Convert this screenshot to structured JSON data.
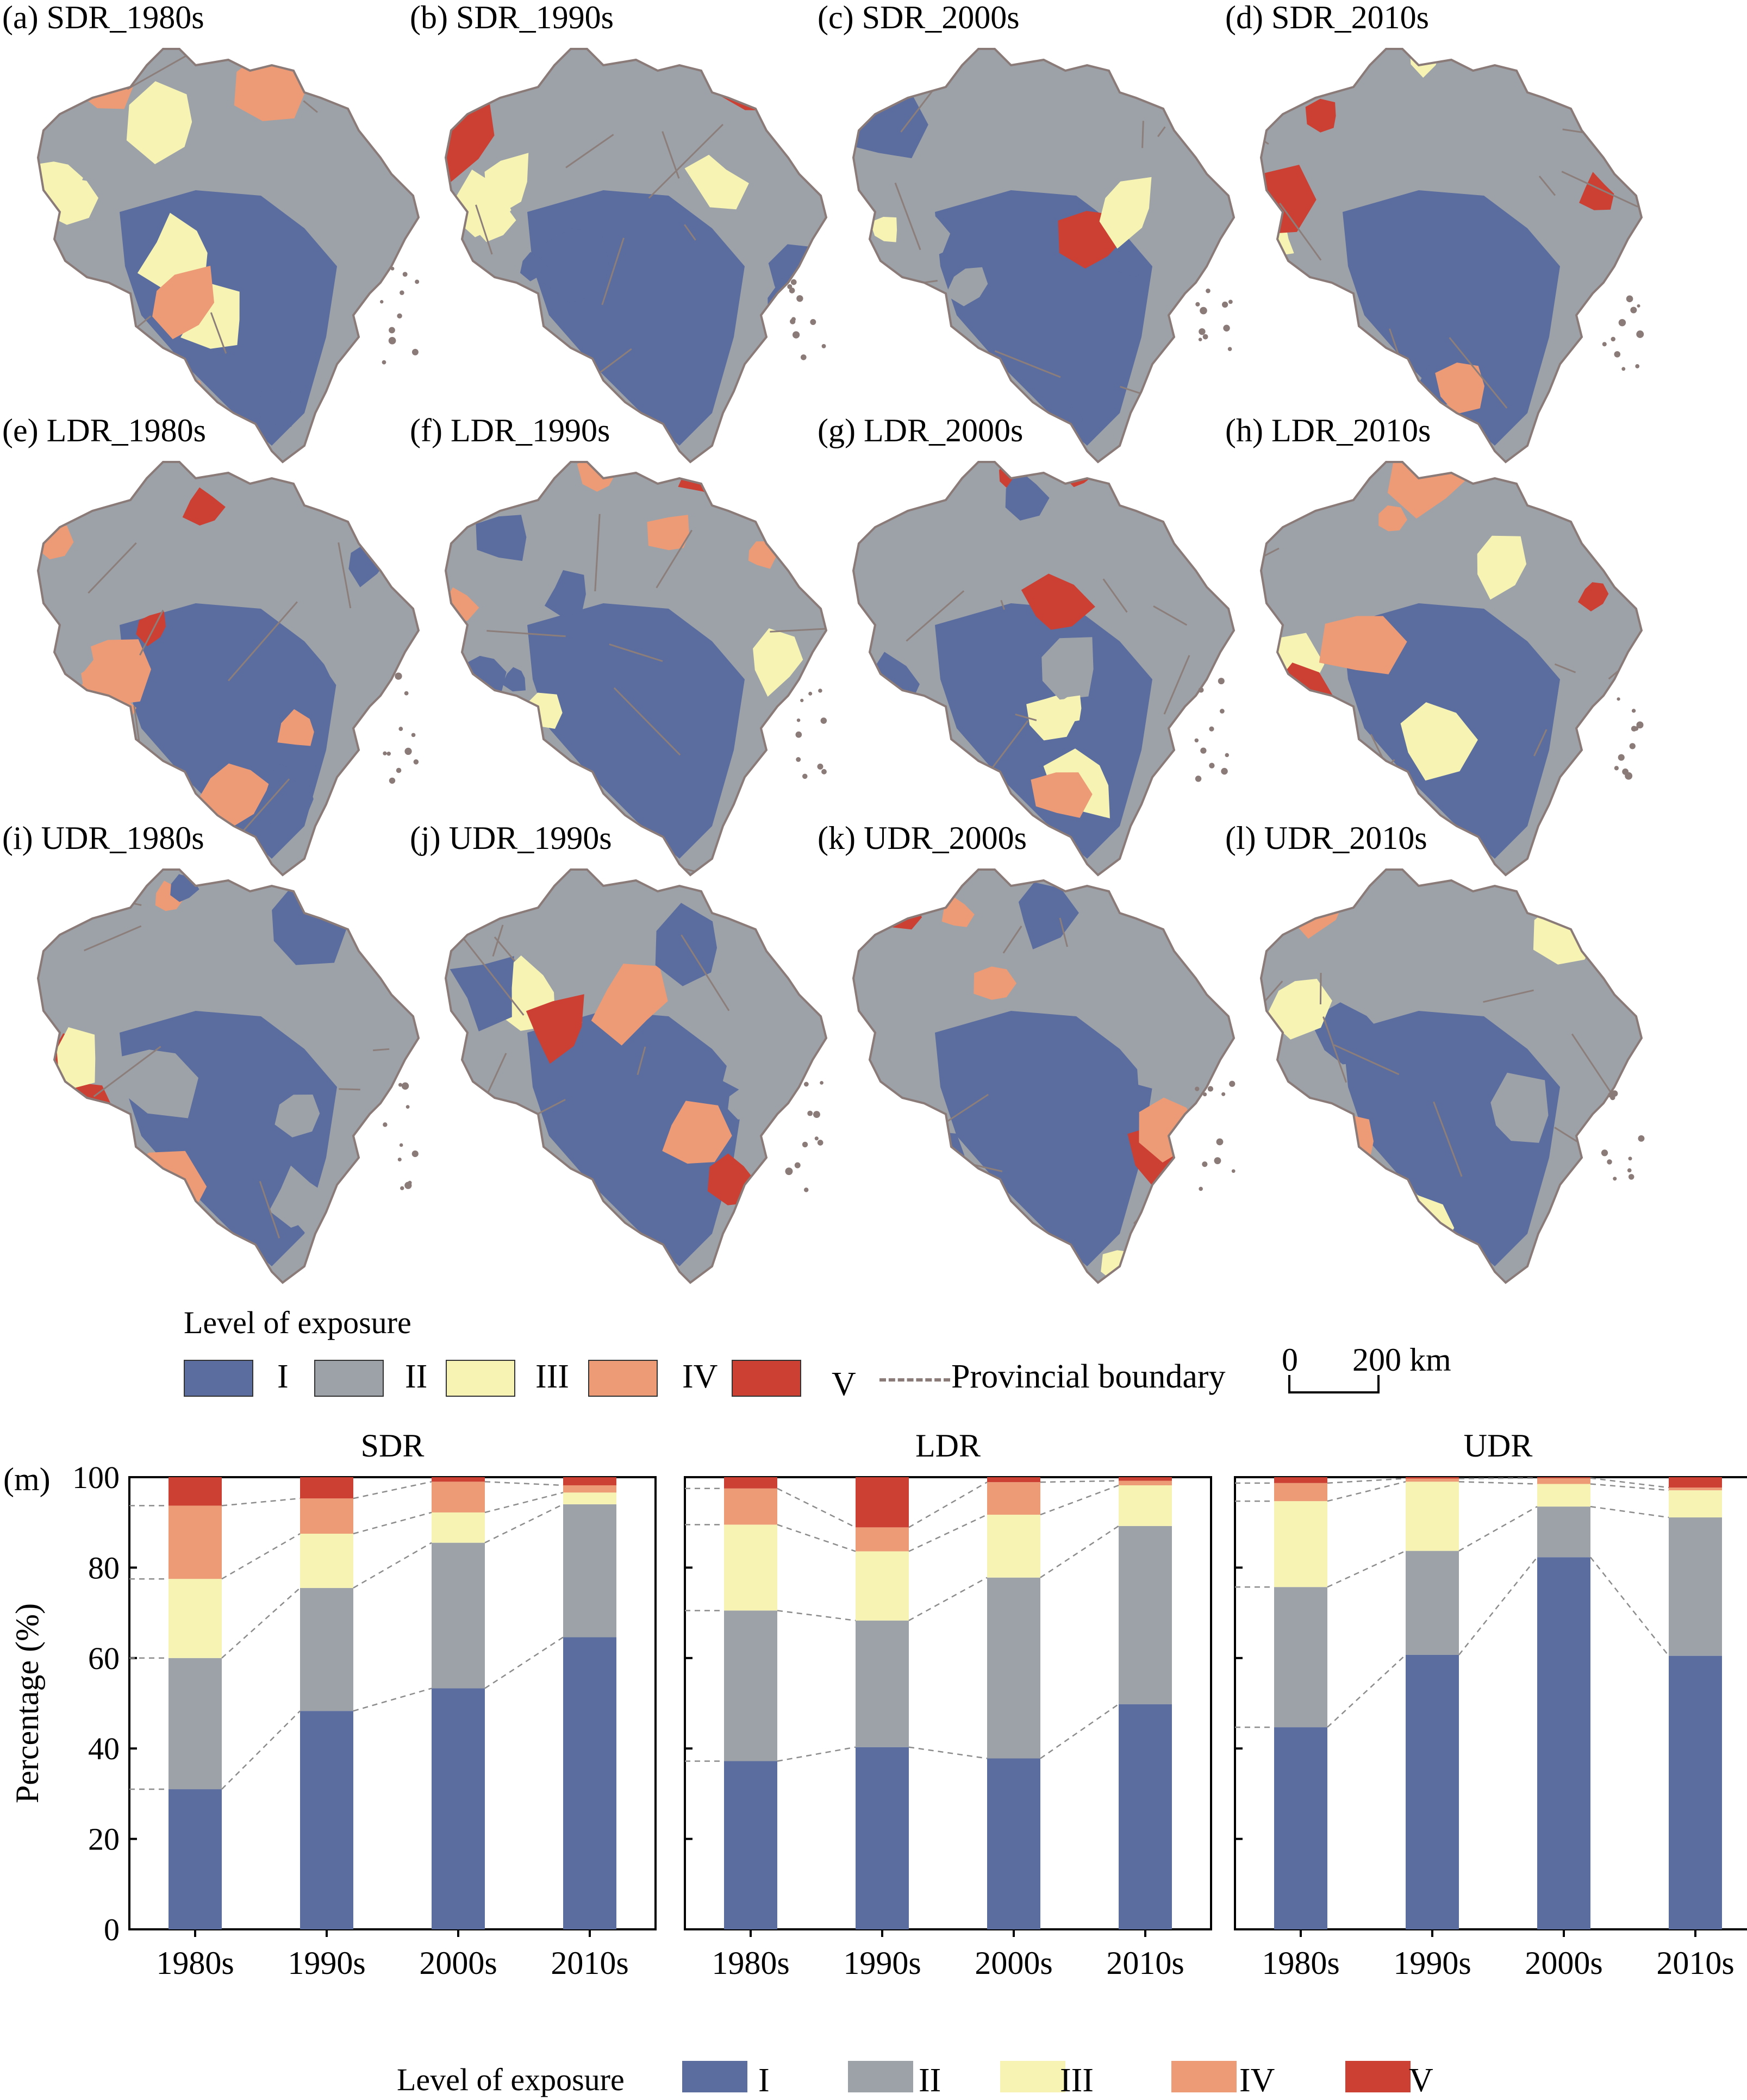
{
  "colors": {
    "I": "#5b6c9e",
    "II": "#9ca2a8",
    "III": "#f7f3b3",
    "IV": "#ec9b76",
    "V": "#cc4033",
    "boundary": "#8a7a78"
  },
  "maps": {
    "panels": [
      {
        "label": "(a) SDR_1980s"
      },
      {
        "label": "(b) SDR_1990s"
      },
      {
        "label": "(c) SDR_2000s"
      },
      {
        "label": "(d) SDR_2010s"
      },
      {
        "label": "(e) LDR_1980s"
      },
      {
        "label": "(f) LDR_1990s"
      },
      {
        "label": "(g) LDR_2000s"
      },
      {
        "label": "(h) LDR_2010s"
      },
      {
        "label": "(i) UDR_1980s"
      },
      {
        "label": "(j) UDR_1990s"
      },
      {
        "label": "(k) UDR_2000s"
      },
      {
        "label": "(l) UDR_2010s"
      }
    ],
    "legend": {
      "title": "Level of exposure",
      "levels": [
        "I",
        "II",
        "III",
        "IV",
        "V"
      ],
      "boundary_label": "Provincial boundary",
      "scale_zero": "0",
      "scale_label": "200 km"
    }
  },
  "chart_data": {
    "type": "bar",
    "stacked": true,
    "panel_label": "(m)",
    "ylabel": "Percentage (%)",
    "ylim": [
      0,
      100
    ],
    "yticks": [
      0,
      20,
      40,
      60,
      80,
      100
    ],
    "categories": [
      "1980s",
      "1990s",
      "2000s",
      "2010s"
    ],
    "legend_title": "Level of exposure",
    "legend_position": "bottom",
    "levels": [
      "I",
      "II",
      "III",
      "IV",
      "V"
    ],
    "panels": [
      {
        "title": "SDR",
        "series": [
          {
            "name": "I",
            "values": [
              31,
              48.3,
              53.3,
              64.6
            ]
          },
          {
            "name": "II",
            "values": [
              29,
              27.2,
              32.2,
              29.4
            ]
          },
          {
            "name": "III",
            "values": [
              17.5,
              12,
              6.7,
              2.6
            ]
          },
          {
            "name": "IV",
            "values": [
              16.2,
              7.8,
              6.8,
              1.6
            ]
          },
          {
            "name": "V",
            "values": [
              6.3,
              4.7,
              1,
              1.8
            ]
          }
        ]
      },
      {
        "title": "LDR",
        "series": [
          {
            "name": "I",
            "values": [
              37.2,
              40.3,
              37.8,
              49.8
            ]
          },
          {
            "name": "II",
            "values": [
              33.3,
              28,
              40,
              39.4
            ]
          },
          {
            "name": "III",
            "values": [
              19,
              15.3,
              13.9,
              9
            ]
          },
          {
            "name": "IV",
            "values": [
              8,
              5.3,
              7.2,
              1
            ]
          },
          {
            "name": "V",
            "values": [
              2.5,
              11.1,
              1.1,
              0.8
            ]
          }
        ]
      },
      {
        "title": "UDR",
        "series": [
          {
            "name": "I",
            "values": [
              44.7,
              60.7,
              82.3,
              60.5
            ]
          },
          {
            "name": "II",
            "values": [
              31,
              23,
              11.2,
              30.6
            ]
          },
          {
            "name": "III",
            "values": [
              19,
              15.3,
              5,
              6
            ]
          },
          {
            "name": "IV",
            "values": [
              4,
              0.7,
              1.3,
              0.6
            ]
          },
          {
            "name": "V",
            "values": [
              1.3,
              0.3,
              0.2,
              2.3
            ]
          }
        ]
      }
    ]
  }
}
